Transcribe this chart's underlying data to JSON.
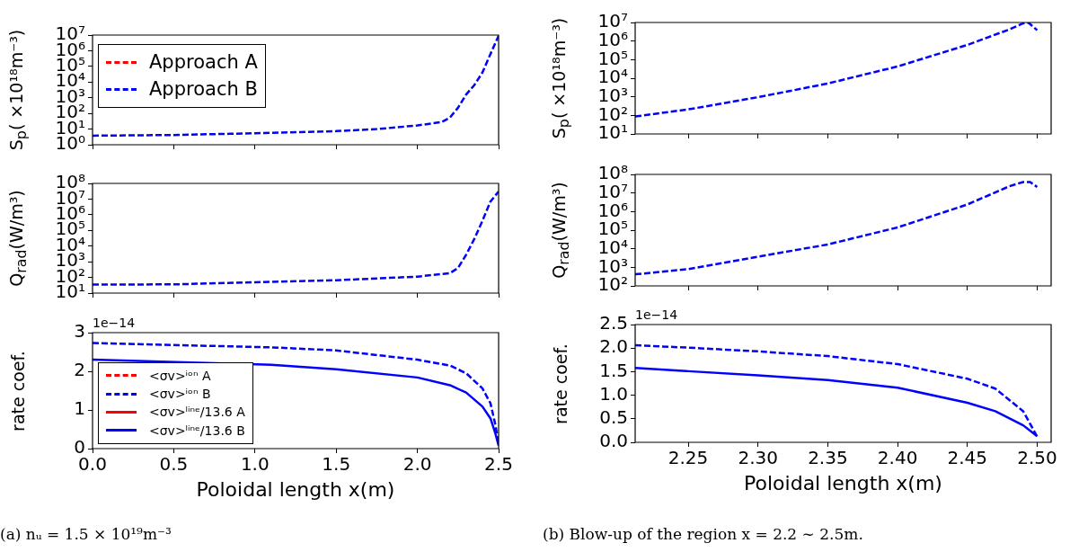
{
  "chart_data": [
    {
      "type": "line",
      "ylabel": "S$_{p}$( ×10¹⁸m⁻³)",
      "log": "y",
      "legend": "top left",
      "tick_labels": "y",
      "xlim": [
        0,
        2.5
      ],
      "xticks": [
        {
          "value": 0,
          "label": null
        },
        {
          "value": 0.5,
          "label": null
        },
        {
          "value": 1,
          "label": null
        },
        {
          "value": 1.5,
          "label": null
        },
        {
          "value": 2,
          "label": null
        },
        {
          "value": 2.5,
          "label": null
        }
      ],
      "ylim": [
        1,
        10000000
      ],
      "yticks": [
        {
          "value": 1,
          "label": "10⁰"
        },
        {
          "value": 10,
          "label": "10¹"
        },
        {
          "value": 100,
          "label": "10²"
        },
        {
          "value": 1000,
          "label": "10³"
        },
        {
          "value": 10000,
          "label": "10⁴"
        },
        {
          "value": 100000,
          "label": "10⁵"
        },
        {
          "value": 1000000,
          "label": "10⁶"
        },
        {
          "value": 10000000,
          "label": "10⁷"
        }
      ],
      "x": [
        0,
        0.5,
        1,
        1.5,
        1.75,
        2,
        2.15,
        2.2,
        2.25,
        2.3,
        2.35,
        2.4,
        2.45,
        2.5
      ],
      "series": [
        {
          "name": "Approach A",
          "color": "#ff0000",
          "line_style": "dashed",
          "values": [
            null,
            null,
            null,
            null,
            null,
            null,
            null,
            null,
            null,
            null,
            null,
            null,
            null,
            null
          ]
        },
        {
          "name": "Approach B",
          "color": "#0000ff",
          "line_style": "dashed",
          "values": [
            3.8,
            4.2,
            5.4,
            7.4,
            10,
            17,
            28,
            54,
            230,
            1600,
            6300,
            40000,
            630000,
            9000000
          ]
        }
      ]
    },
    {
      "type": "line",
      "ylabel": "Q$_{rad}$(W/m³)",
      "log": "y",
      "tick_labels": "y",
      "xlim": [
        0,
        2.5
      ],
      "xticks": [
        {
          "value": 0,
          "label": null
        },
        {
          "value": 0.5,
          "label": null
        },
        {
          "value": 1,
          "label": null
        },
        {
          "value": 1.5,
          "label": null
        },
        {
          "value": 2,
          "label": null
        },
        {
          "value": 2.5,
          "label": null
        }
      ],
      "ylim": [
        10,
        100000000
      ],
      "yticks": [
        {
          "value": 10,
          "label": "10¹"
        },
        {
          "value": 100,
          "label": "10²"
        },
        {
          "value": 1000,
          "label": "10³"
        },
        {
          "value": 10000,
          "label": "10⁴"
        },
        {
          "value": 100000,
          "label": "10⁵"
        },
        {
          "value": 1000000,
          "label": "10⁶"
        },
        {
          "value": 10000000,
          "label": "10⁷"
        },
        {
          "value": 100000000,
          "label": "10⁸"
        }
      ],
      "x": [
        0,
        0.5,
        1,
        1.5,
        2,
        2.2,
        2.25,
        2.3,
        2.35,
        2.4,
        2.45,
        2.5
      ],
      "series": [
        {
          "color": "#0000ff",
          "line_style": "dashed",
          "values": [
            35,
            36,
            49,
            66,
            112,
            186,
            400,
            2800,
            28000,
            400000,
            7000000,
            30000000
          ]
        }
      ]
    },
    {
      "type": "line",
      "ylabel": "rate coef.",
      "xlabel": "Poloidal length x(m)",
      "legend": "bottom left",
      "annotations": [
        "1e−14",
        "(a) nᵤ = 1.5 × 10¹⁹m⁻³"
      ],
      "xlim": [
        0,
        2.5
      ],
      "xticks": [
        {
          "value": 0,
          "label": "0.0"
        },
        0.5,
        {
          "value": 1,
          "label": "1.0"
        },
        1.5,
        {
          "value": 2,
          "label": "2.0"
        },
        2.5
      ],
      "ylim": [
        0,
        3
      ],
      "yticks": [
        0,
        1,
        2,
        3
      ],
      "x": [
        0,
        1.1,
        1.5,
        2,
        2.2,
        2.3,
        2.4,
        2.45,
        2.48,
        2.5
      ],
      "series": [
        {
          "name": "<σv>ⁱᵒⁿ A",
          "color": "#ff0000",
          "line_style": "dashed",
          "values": [
            null,
            null,
            null,
            null,
            null,
            null,
            null,
            null,
            null,
            null
          ]
        },
        {
          "name": "<σv>ⁱᵒⁿ B",
          "color": "#0000ff",
          "line_style": "dashed",
          "values": [
            2.73,
            2.62,
            2.54,
            2.3,
            2.15,
            1.95,
            1.56,
            1.17,
            0.62,
            0.12
          ]
        },
        {
          "name": "<σv>ˡⁱⁿᵉ/13.6 A",
          "color": "#ff0000",
          "line_style": "solid",
          "values": [
            null,
            null,
            null,
            null,
            null,
            null,
            null,
            null,
            null,
            null
          ]
        },
        {
          "name": "<σv>ˡⁱⁿᵉ/13.6 B",
          "color": "#0000ff",
          "line_style": "solid",
          "values": [
            2.3,
            2.17,
            2.05,
            1.84,
            1.64,
            1.45,
            1.09,
            0.78,
            0.39,
            0.08
          ]
        }
      ]
    },
    {
      "type": "line",
      "ylabel": "S$_{p}$( ×10¹⁸m⁻³)",
      "log": "y",
      "tick_labels": "y",
      "xlim": [
        2.212,
        2.51
      ],
      "xticks": [
        {
          "value": 2.25,
          "label": null
        },
        {
          "value": 2.3,
          "label": null
        },
        {
          "value": 2.35,
          "label": null
        },
        {
          "value": 2.4,
          "label": null
        },
        {
          "value": 2.45,
          "label": null
        },
        {
          "value": 2.5,
          "label": null
        }
      ],
      "ylim": [
        10,
        10000000
      ],
      "yticks": [
        {
          "value": 10,
          "label": "10¹"
        },
        {
          "value": 100,
          "label": "10²"
        },
        {
          "value": 1000,
          "label": "10³"
        },
        {
          "value": 10000,
          "label": "10⁴"
        },
        {
          "value": 100000,
          "label": "10⁵"
        },
        {
          "value": 1000000,
          "label": "10⁶"
        },
        {
          "value": 10000000,
          "label": "10⁷"
        }
      ],
      "x": [
        2.212,
        2.25,
        2.3,
        2.35,
        2.4,
        2.45,
        2.48,
        2.49,
        2.494,
        2.5
      ],
      "series": [
        {
          "color": "#0000ff",
          "line_style": "dashed",
          "values": [
            87,
            210,
            950,
            5200,
            43000,
            620000,
            4200000,
            9000000,
            9500000,
            3800000
          ]
        }
      ]
    },
    {
      "type": "line",
      "ylabel": "Q$_{rad}$(W/m³)",
      "log": "y",
      "tick_labels": "y",
      "xlim": [
        2.212,
        2.51
      ],
      "xticks": [
        {
          "value": 2.25,
          "label": null
        },
        {
          "value": 2.3,
          "label": null
        },
        {
          "value": 2.35,
          "label": null
        },
        {
          "value": 2.4,
          "label": null
        },
        {
          "value": 2.45,
          "label": null
        },
        {
          "value": 2.5,
          "label": null
        }
      ],
      "ylim": [
        100,
        100000000
      ],
      "yticks": [
        {
          "value": 100,
          "label": "10²"
        },
        {
          "value": 1000,
          "label": "10³"
        },
        {
          "value": 10000,
          "label": "10⁴"
        },
        {
          "value": 100000,
          "label": "10⁵"
        },
        {
          "value": 1000000,
          "label": "10⁶"
        },
        {
          "value": 10000000,
          "label": "10⁷"
        },
        {
          "value": 100000000,
          "label": "10⁸"
        }
      ],
      "x": [
        2.212,
        2.25,
        2.3,
        2.35,
        2.4,
        2.45,
        2.48,
        2.49,
        2.495,
        2.5
      ],
      "series": [
        {
          "color": "#0000ff",
          "line_style": "dashed",
          "values": [
            420,
            800,
            3700,
            17000,
            140000,
            2400000,
            23000000,
            39000000,
            39000000,
            21000000
          ]
        }
      ]
    },
    {
      "type": "line",
      "ylabel": "rate coef.",
      "xlabel": "Poloidal length x(m)",
      "annotations": [
        "1e−14",
        "(b) Blow-up of the region x = 2.2 ∼ 2.5m."
      ],
      "xlim": [
        2.212,
        2.51
      ],
      "xticks": [
        2.25,
        {
          "value": 2.3,
          "label": "2.30"
        },
        2.35,
        {
          "value": 2.4,
          "label": "2.40"
        },
        2.45,
        {
          "value": 2.5,
          "label": "2.50"
        }
      ],
      "ylim": [
        0,
        2.5
      ],
      "yticks": [
        {
          "value": 0,
          "label": "0.0"
        },
        0.5,
        {
          "value": 1,
          "label": "1.0"
        },
        1.5,
        {
          "value": 2,
          "label": "2.0"
        },
        2.5
      ],
      "x": [
        2.212,
        2.25,
        2.3,
        2.35,
        2.4,
        2.45,
        2.47,
        2.49,
        2.5
      ],
      "series": [
        {
          "color": "#0000ff",
          "line_style": "dashed",
          "values": [
            2.06,
            2.01,
            1.93,
            1.83,
            1.66,
            1.35,
            1.14,
            0.66,
            0.12
          ]
        },
        {
          "color": "#0000ff",
          "line_style": "solid",
          "values": [
            1.58,
            1.51,
            1.42,
            1.32,
            1.16,
            0.84,
            0.66,
            0.36,
            0.13
          ]
        }
      ]
    }
  ]
}
